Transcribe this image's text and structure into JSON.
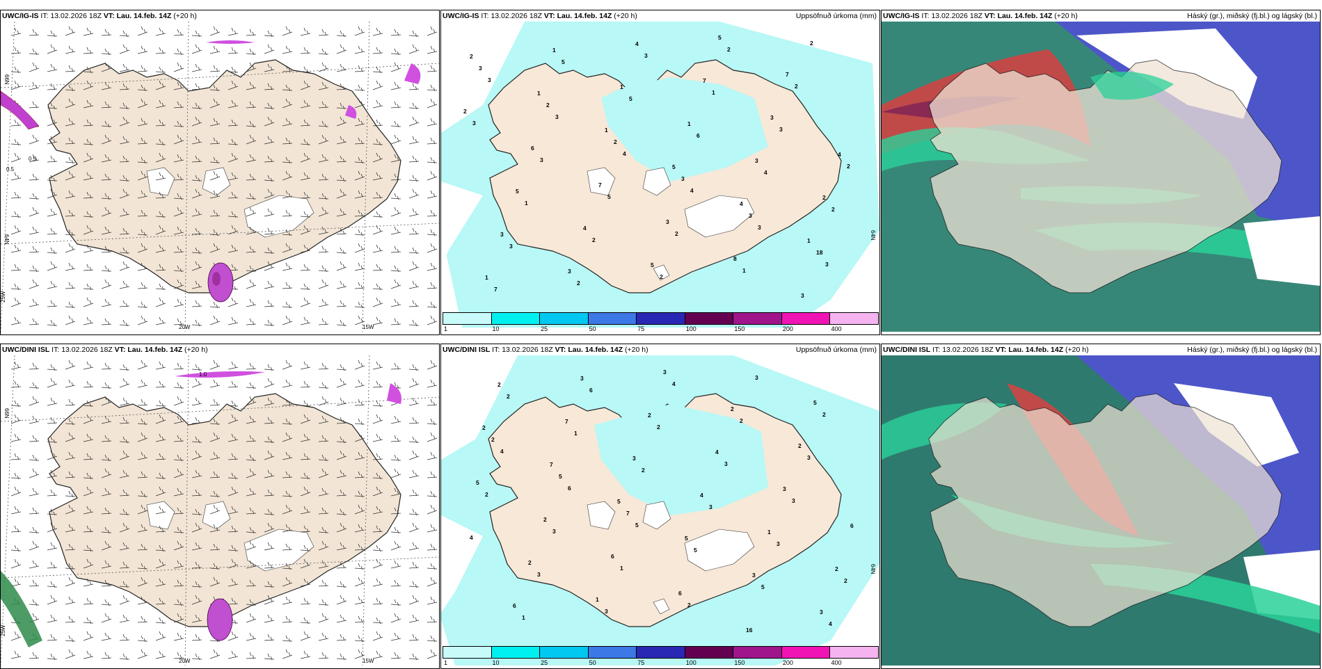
{
  "panels": [
    {
      "model": "UWC/IG-IS",
      "it_label": "IT:",
      "it": "13.02.2026 18Z",
      "vt_label": "VT:",
      "vt": "Lau. 14.feb. 14Z",
      "lead": "(+20 h)",
      "right": ""
    },
    {
      "model": "UWC/IG-IS",
      "it_label": "IT:",
      "it": "13.02.2026 18Z",
      "vt_label": "VT:",
      "vt": "Lau. 14.feb. 14Z",
      "lead": "(+20 h)",
      "right": "Uppsöfnuð úrkoma (mm)"
    },
    {
      "model": "UWC/IG-IS",
      "it_label": "IT:",
      "it": "13.02.2026 18Z",
      "vt_label": "VT:",
      "vt": "Lau. 14.feb. 14Z",
      "lead": "(+20 h)",
      "right": "Háský (gr.), miðský (fj.bl.) og lágský (bl.)"
    },
    {
      "model": "UWC/DINI ISL",
      "it_label": "IT:",
      "it": "13.02.2026 18Z",
      "vt_label": "VT:",
      "vt": "Lau. 14.feb. 14Z",
      "lead": "(+20 h)",
      "right": ""
    },
    {
      "model": "UWC/DINI ISL",
      "it_label": "IT:",
      "it": "13.02.2026 18Z",
      "vt_label": "VT:",
      "vt": "Lau. 14.feb. 14Z",
      "lead": "(+20 h)",
      "right": "Uppsöfnuð úrkoma (mm)"
    },
    {
      "model": "UWC/DINI ISL",
      "it_label": "IT:",
      "it": "13.02.2026 18Z",
      "vt_label": "VT:",
      "vt": "Lau. 14.feb. 14Z",
      "lead": "(+20 h)",
      "right": "Háský (gr.), miðský (fj.bl.) og lágský (bl.)"
    }
  ],
  "axes": {
    "lat66": "66N",
    "lat64": "64N",
    "lon25": "25W",
    "lon20": "20W",
    "lon15": "15W",
    "lat_e": "64N"
  },
  "contours": {
    "a": "0.5",
    "b": "0.5",
    "c": "1.0"
  },
  "colorbar": {
    "ticks": [
      "1",
      "10",
      "25",
      "50",
      "75",
      "100",
      "150",
      "200",
      "400"
    ],
    "colors": [
      "#c8fafa",
      "#00f0f0",
      "#00c8f0",
      "#3c78e6",
      "#2828b4",
      "#640050",
      "#a0148c",
      "#f014b4",
      "#f5b4f0"
    ]
  },
  "precip_top": [
    "2",
    "1",
    "1",
    "5",
    "4",
    "1",
    "1",
    "1",
    "1",
    "1",
    "3",
    "2",
    "3",
    "3",
    "4",
    "7",
    "3",
    "4",
    "5",
    "4",
    "5",
    "5",
    "7",
    "2",
    "6",
    "7",
    "3",
    "8",
    "3",
    "3",
    "2",
    "2",
    "3",
    "3",
    "18",
    "7",
    "5",
    "5",
    "6",
    "4",
    "2",
    "3",
    "2",
    "3",
    "1",
    "3",
    "2",
    "1",
    "2",
    "2",
    "2",
    "2",
    "3",
    "3",
    "5",
    "2",
    "1",
    "2",
    "3",
    "3",
    "4",
    "4",
    "3",
    "3"
  ],
  "precip_bot": [
    "2",
    "7",
    "5",
    "5",
    "3",
    "3",
    "2",
    "7",
    "3",
    "4",
    "1",
    "2",
    "6",
    "3",
    "2",
    "4",
    "3",
    "6",
    "2",
    "1",
    "3",
    "2",
    "2",
    "5",
    "2",
    "6",
    "6",
    "16",
    "5",
    "2",
    "5",
    "7",
    "5",
    "5",
    "4",
    "2",
    "1",
    "2",
    "3",
    "3",
    "2",
    "1",
    "6",
    "2",
    "3",
    "3",
    "4",
    "3",
    "3",
    "4",
    "2",
    "3",
    "2",
    "3",
    "1",
    "2",
    "3",
    "2",
    "4",
    "6",
    "5"
  ]
}
